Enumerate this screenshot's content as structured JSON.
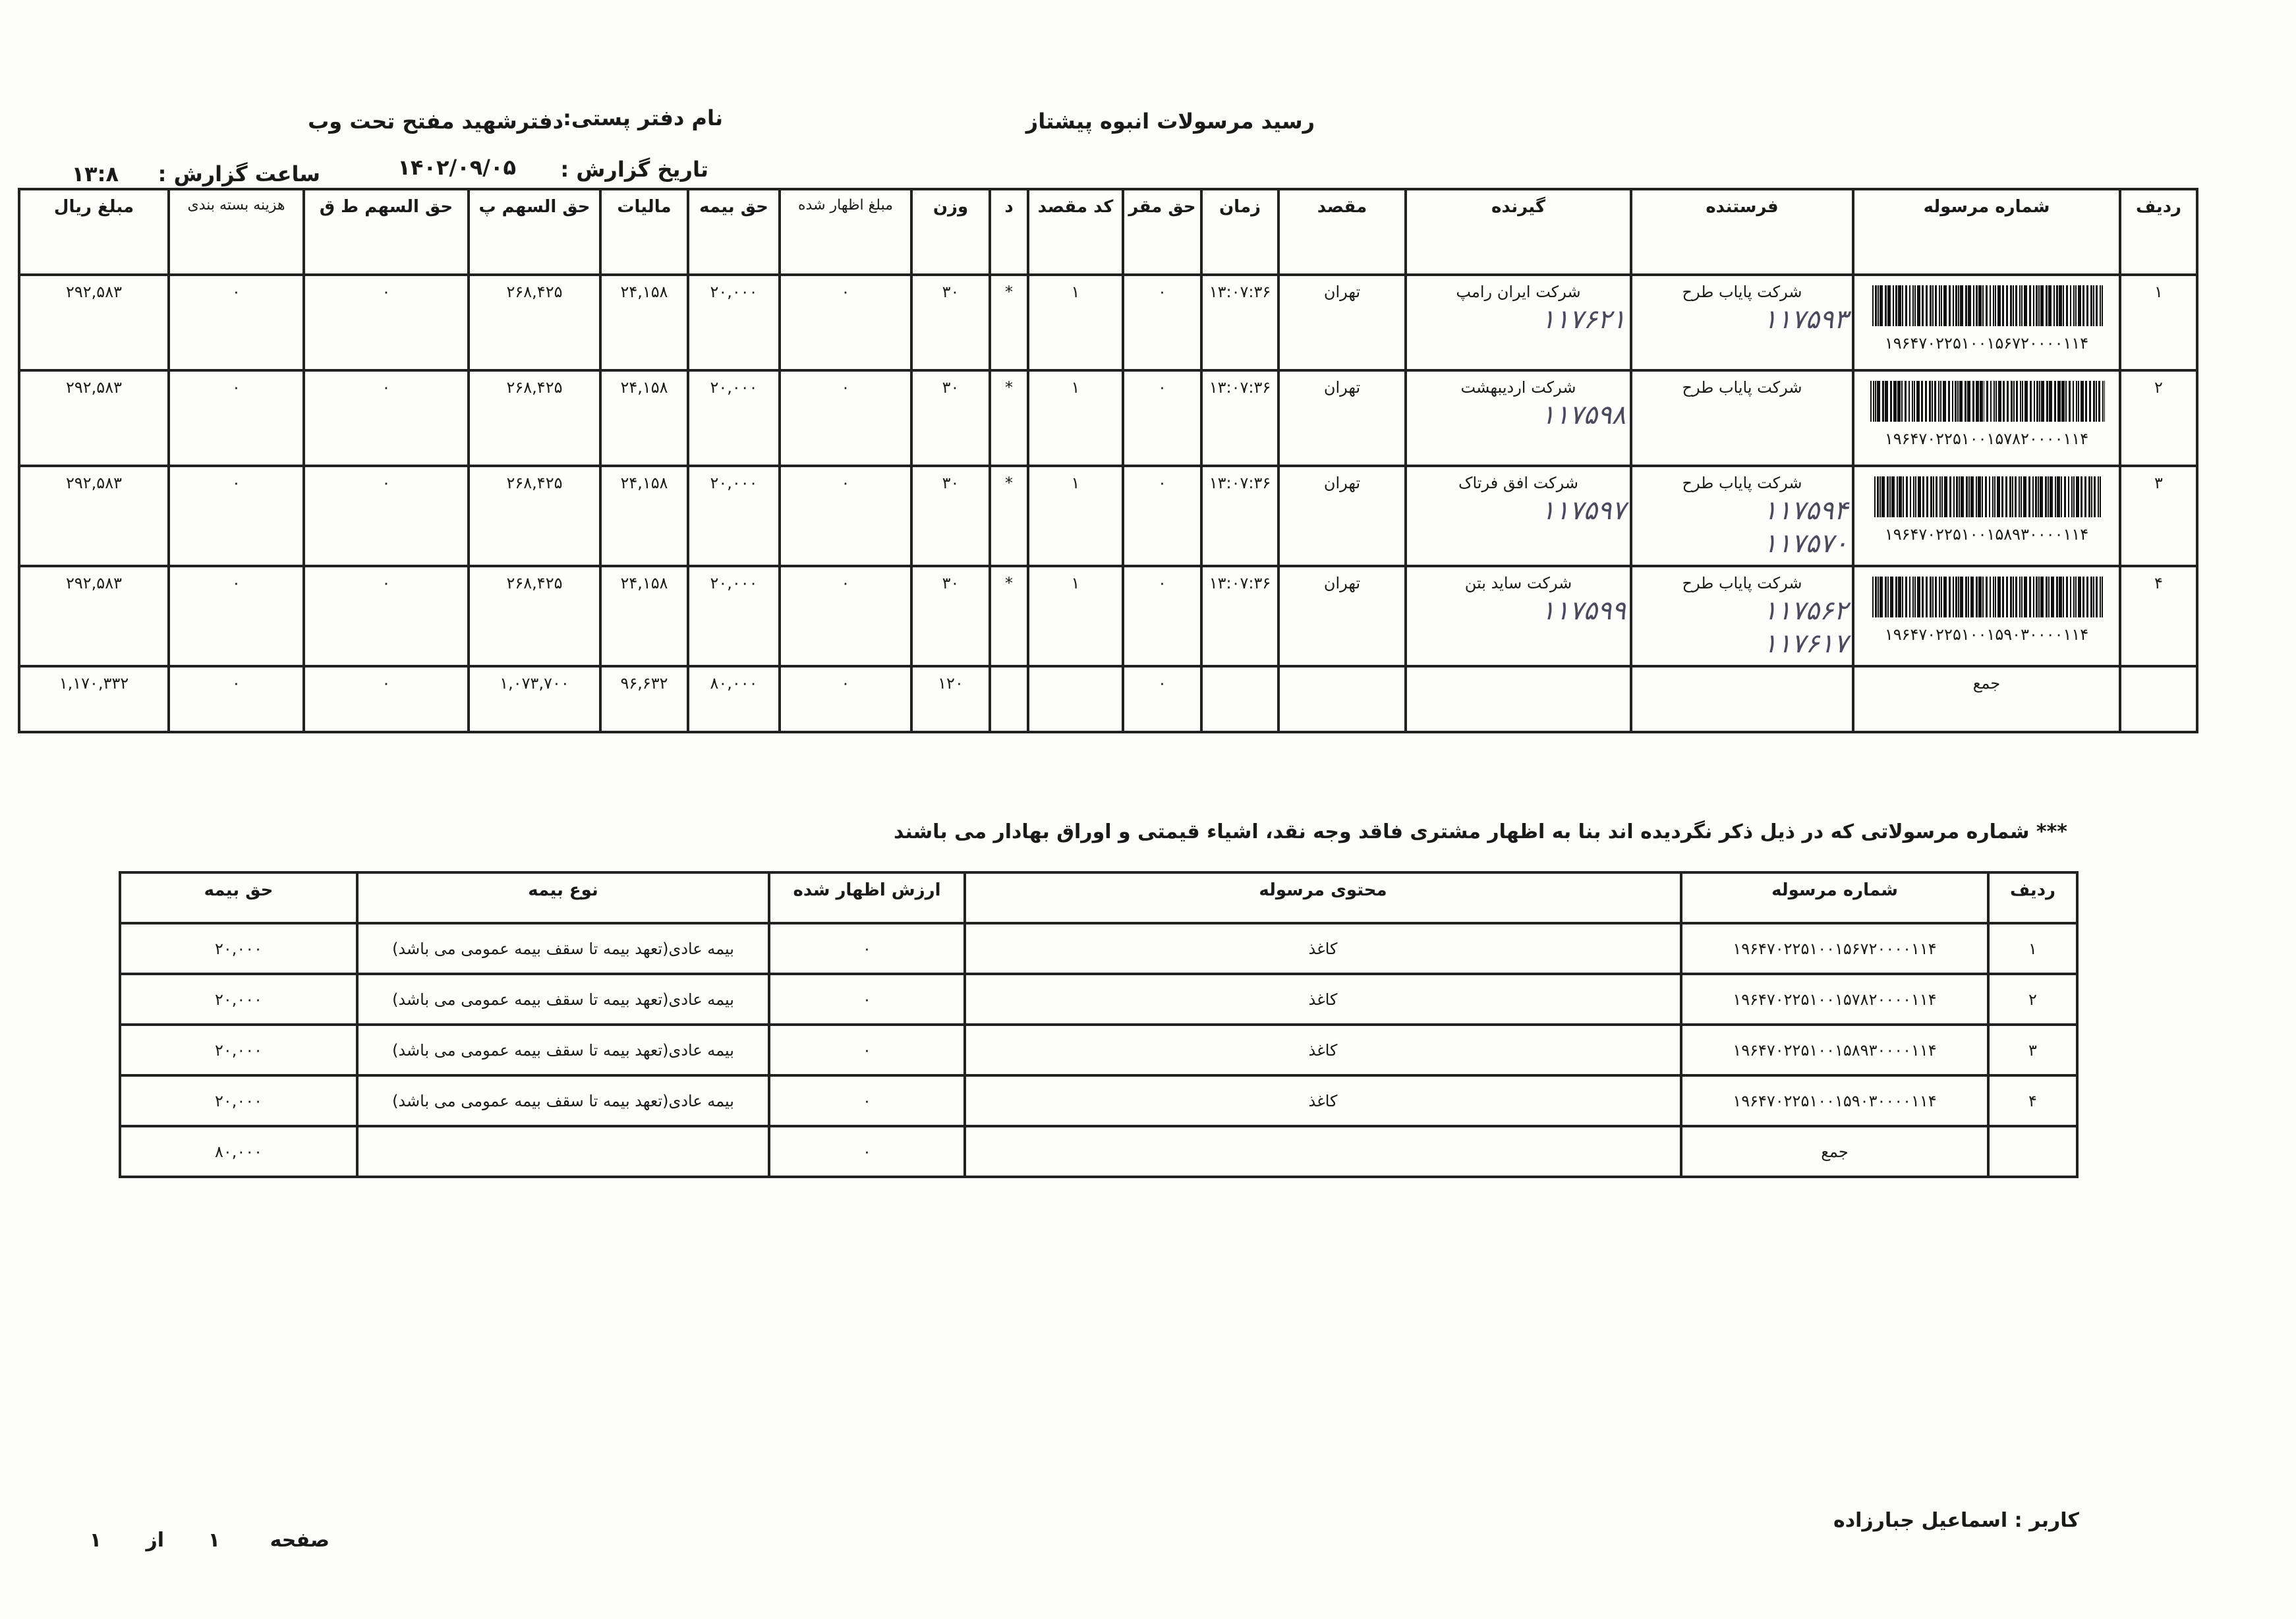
{
  "header": {
    "title": "رسید مرسولات انبوه   پیشتاز",
    "office_label": "نام دفتر پستی:",
    "office_value": "دفترشهید مفتح تحت وب",
    "date_label": "تاریخ گزارش :",
    "date_value": "۱۴۰۲/۰۹/۰۵",
    "time_label": "ساعت گزارش :",
    "time_value": "۱۳:۸"
  },
  "main_table": {
    "columns": [
      "ردیف",
      "شماره مرسوله",
      "فرستنده",
      "گیرنده",
      "مقصد",
      "زمان",
      "حق مقر",
      "کد مقصد",
      "د",
      "وزن",
      "مبلغ اظهار شده",
      "حق بیمه",
      "مالیات",
      "حق السهم پ",
      "حق السهم ط ق",
      "هزینه بسته بندی",
      "مبلغ ریال"
    ],
    "rows": [
      {
        "row": "۱",
        "number": "۱۹۶۴۷۰۲۲۵۱۰۰۱۵۶۷۲۰۰۰۰۱۱۴",
        "sender": "شرکت پایاب طرح",
        "sender_hand": [
          "۱۱۷۵۹۳"
        ],
        "receiver": "شرکت ایران رامپ",
        "receiver_hand": [
          "۱۱۷۶۲۱"
        ],
        "dest": "تهران",
        "time": "۱۳:۰۷:۳۶",
        "haq_maghar": "۰",
        "dest_code": "۱",
        "d": "*",
        "weight": "۳۰",
        "declared": "۰",
        "insurance": "۲۰,۰۰۰",
        "tax": "۲۴,۱۵۸",
        "share_p": "۲۶۸,۴۲۵",
        "share_tq": "۰",
        "packing": "۰",
        "amount": "۲۹۲,۵۸۳"
      },
      {
        "row": "۲",
        "number": "۱۹۶۴۷۰۲۲۵۱۰۰۱۵۷۸۲۰۰۰۰۱۱۴",
        "sender": "شرکت پایاب طرح",
        "sender_hand": [],
        "receiver": "شرکت اردیبهشت",
        "receiver_hand": [
          "۱۱۷۵۹۸"
        ],
        "dest": "تهران",
        "time": "۱۳:۰۷:۳۶",
        "haq_maghar": "۰",
        "dest_code": "۱",
        "d": "*",
        "weight": "۳۰",
        "declared": "۰",
        "insurance": "۲۰,۰۰۰",
        "tax": "۲۴,۱۵۸",
        "share_p": "۲۶۸,۴۲۵",
        "share_tq": "۰",
        "packing": "۰",
        "amount": "۲۹۲,۵۸۳"
      },
      {
        "row": "۳",
        "number": "۱۹۶۴۷۰۲۲۵۱۰۰۱۵۸۹۳۰۰۰۰۱۱۴",
        "sender": "شرکت پایاب طرح",
        "sender_hand": [
          "۱۱۷۵۹۴",
          "۱۱۷۵۷۰"
        ],
        "receiver": "شرکت افق فرتاک",
        "receiver_hand": [
          "۱۱۷۵۹۷"
        ],
        "dest": "تهران",
        "time": "۱۳:۰۷:۳۶",
        "haq_maghar": "۰",
        "dest_code": "۱",
        "d": "*",
        "weight": "۳۰",
        "declared": "۰",
        "insurance": "۲۰,۰۰۰",
        "tax": "۲۴,۱۵۸",
        "share_p": "۲۶۸,۴۲۵",
        "share_tq": "۰",
        "packing": "۰",
        "amount": "۲۹۲,۵۸۳"
      },
      {
        "row": "۴",
        "number": "۱۹۶۴۷۰۲۲۵۱۰۰۱۵۹۰۳۰۰۰۰۱۱۴",
        "sender": "شرکت پایاب طرح",
        "sender_hand": [
          "۱۱۷۵۶۲",
          "۱۱۷۶۱۷"
        ],
        "receiver": "شرکت ساید بتن",
        "receiver_hand": [
          "۱۱۷۵۹۹"
        ],
        "dest": "تهران",
        "time": "۱۳:۰۷:۳۶",
        "haq_maghar": "۰",
        "dest_code": "۱",
        "d": "*",
        "weight": "۳۰",
        "declared": "۰",
        "insurance": "۲۰,۰۰۰",
        "tax": "۲۴,۱۵۸",
        "share_p": "۲۶۸,۴۲۵",
        "share_tq": "۰",
        "packing": "۰",
        "amount": "۲۹۲,۵۸۳"
      }
    ],
    "total": {
      "label": "جمع",
      "haq_maghar": "۰",
      "weight": "۱۲۰",
      "declared": "۰",
      "insurance": "۸۰,۰۰۰",
      "tax": "۹۶,۶۳۲",
      "share_p": "۱,۰۷۳,۷۰۰",
      "share_tq": "۰",
      "packing": "۰",
      "amount": "۱,۱۷۰,۳۳۲"
    }
  },
  "note": "*** شماره مرسولاتی که در ذیل ذکر نگردیده اند بنا به اظهار مشتری فاقد وجه نقد، اشیاء قیمتی و اوراق بهادار می باشند",
  "insurance_table": {
    "columns": [
      "ردیف",
      "شماره مرسوله",
      "محتوی مرسوله",
      "ارزش اظهار شده",
      "نوع بیمه",
      "حق بیمه"
    ],
    "rows": [
      {
        "row": "۱",
        "number": "۱۹۶۴۷۰۲۲۵۱۰۰۱۵۶۷۲۰۰۰۰۱۱۴",
        "content": "کاغذ",
        "declared": "۰",
        "type": "بیمه عادی(تعهد بیمه تا سقف بیمه عمومی می باشد)",
        "premium": "۲۰,۰۰۰"
      },
      {
        "row": "۲",
        "number": "۱۹۶۴۷۰۲۲۵۱۰۰۱۵۷۸۲۰۰۰۰۱۱۴",
        "content": "کاغذ",
        "declared": "۰",
        "type": "بیمه عادی(تعهد بیمه تا سقف بیمه عمومی می باشد)",
        "premium": "۲۰,۰۰۰"
      },
      {
        "row": "۳",
        "number": "۱۹۶۴۷۰۲۲۵۱۰۰۱۵۸۹۳۰۰۰۰۱۱۴",
        "content": "کاغذ",
        "declared": "۰",
        "type": "بیمه عادی(تعهد بیمه تا سقف بیمه عمومی می باشد)",
        "premium": "۲۰,۰۰۰"
      },
      {
        "row": "۴",
        "number": "۱۹۶۴۷۰۲۲۵۱۰۰۱۵۹۰۳۰۰۰۰۱۱۴",
        "content": "کاغذ",
        "declared": "۰",
        "type": "بیمه عادی(تعهد بیمه تا سقف بیمه عمومی می باشد)",
        "premium": "۲۰,۰۰۰"
      }
    ],
    "total": {
      "label": "جمع",
      "declared": "۰",
      "premium": "۸۰,۰۰۰"
    }
  },
  "footer": {
    "user": "کاربر : اسماعیل جبارزاده",
    "page_label": "صفحه",
    "page_current": "۱",
    "page_of": "از",
    "page_total": "۱"
  }
}
